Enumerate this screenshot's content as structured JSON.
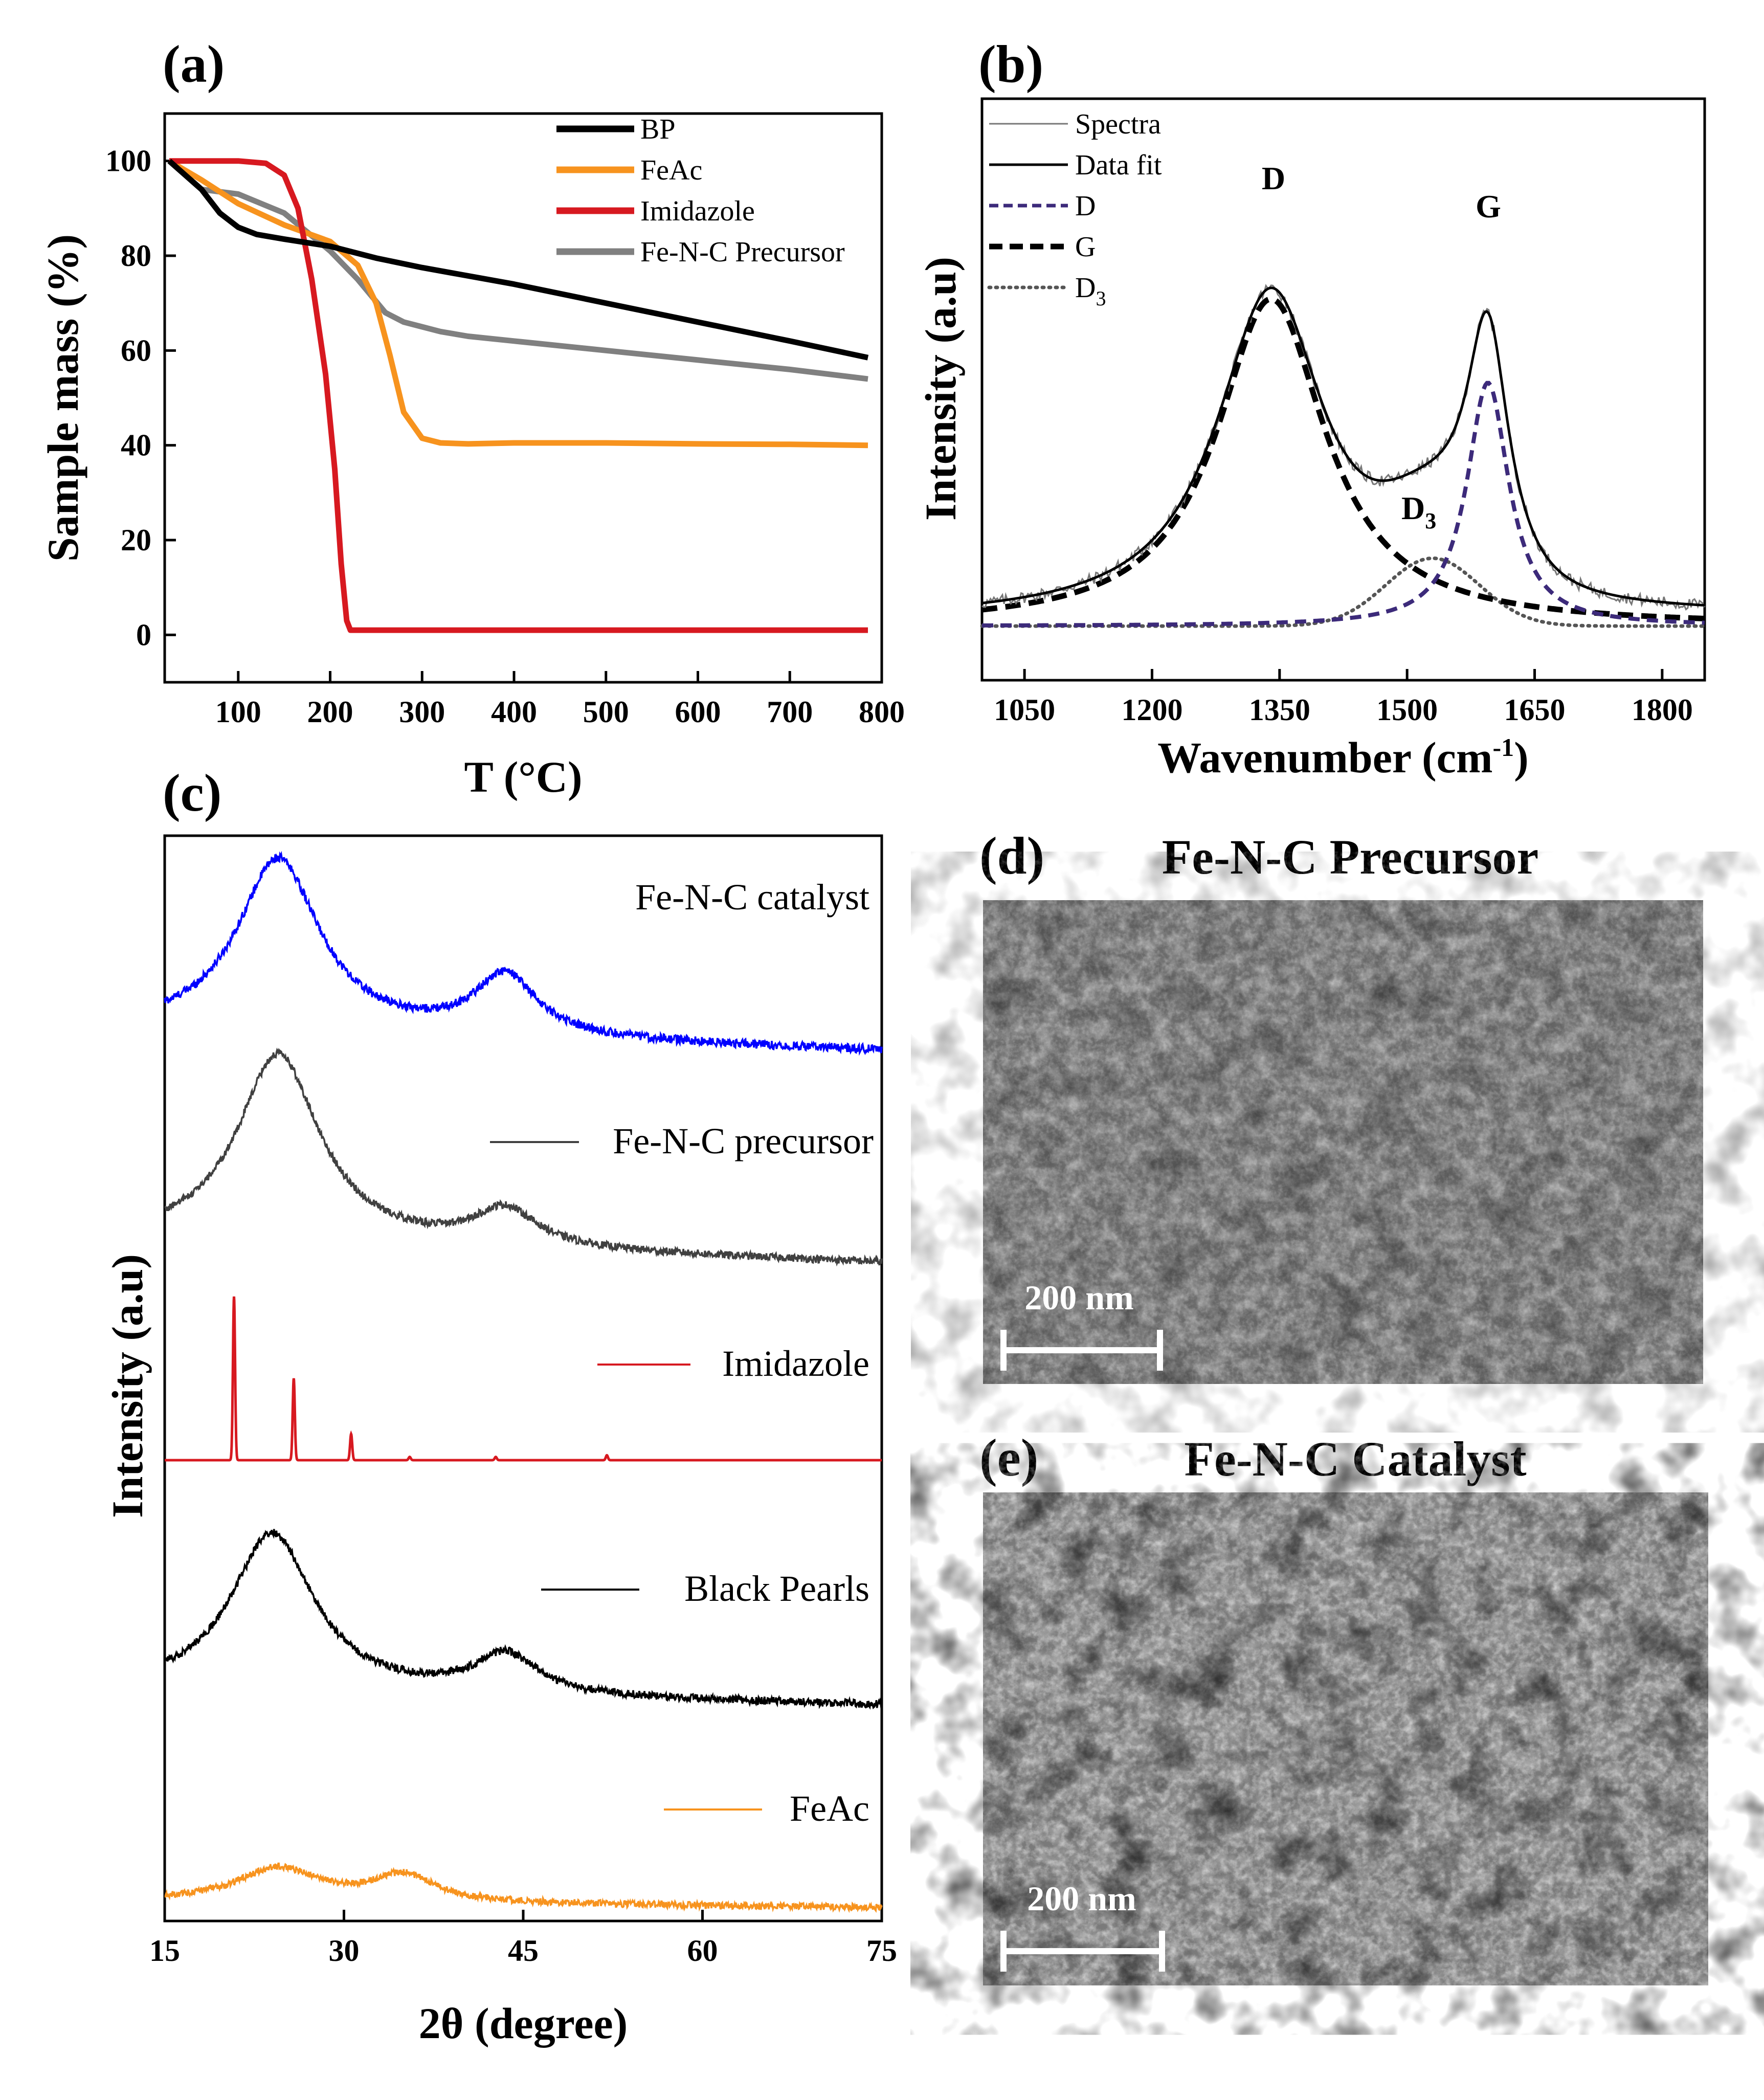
{
  "panels": {
    "a": {
      "label": "(a)",
      "chart_data": {
        "type": "line",
        "xlabel": "T (°C)",
        "ylabel": "Sample mass (%)",
        "xlim": [
          20,
          800
        ],
        "ylim": [
          -10,
          110
        ],
        "xticks": [
          100,
          200,
          300,
          400,
          500,
          600,
          700,
          800
        ],
        "yticks": [
          0,
          20,
          40,
          60,
          80,
          100
        ],
        "series": [
          {
            "name": "BP",
            "color": "#000000",
            "x": [
              25,
              60,
              80,
              100,
              120,
              150,
              200,
              250,
              300,
              400,
              500,
              600,
              700,
              785
            ],
            "y": [
              100,
              94,
              89,
              86,
              84.5,
              83.5,
              82,
              79.5,
              77.5,
              74,
              70,
              66,
              62,
              58.5
            ]
          },
          {
            "name": "FeAc",
            "color": "#f7931e",
            "x": [
              25,
              60,
              100,
              150,
              200,
              230,
              250,
              265,
              280,
              300,
              320,
              350,
              400,
              500,
              600,
              700,
              785
            ],
            "y": [
              100,
              96,
              91,
              86.5,
              83,
              78,
              70,
              59,
              47,
              41.5,
              40.5,
              40.3,
              40.5,
              40.5,
              40.3,
              40.2,
              40
            ]
          },
          {
            "name": "Imidazole",
            "color": "#d71920",
            "x": [
              25,
              100,
              130,
              150,
              165,
              180,
              195,
              205,
              212,
              218,
              222,
              300,
              400,
              500,
              600,
              700,
              785
            ],
            "y": [
              100,
              100,
              99.5,
              97,
              90,
              75,
              55,
              35,
              15,
              3,
              1,
              1,
              1,
              1,
              1,
              1,
              1
            ]
          },
          {
            "name": "Fe-N-C Precursor",
            "color": "#808080",
            "x": [
              25,
              60,
              100,
              150,
              200,
              230,
              260,
              280,
              300,
              320,
              350,
              400,
              500,
              600,
              700,
              785
            ],
            "y": [
              100,
              94,
              93,
              89,
              81,
              75,
              68,
              66,
              65,
              64,
              63,
              62,
              60,
              58,
              56,
              54
            ]
          }
        ]
      }
    },
    "b": {
      "label": "(b)",
      "chart_data": {
        "type": "line",
        "xlabel": "Wavenumber (cm",
        "xlabel_sup": "-1",
        "xlabel_close": ")",
        "ylabel": "Intensity (a.u)",
        "xlim": [
          1000,
          1850
        ],
        "xticks": [
          1050,
          1200,
          1350,
          1500,
          1650,
          1800
        ],
        "peak_labels": {
          "D": "D",
          "G": "G",
          "D3": "D",
          "D3_sub": "3"
        },
        "legend": [
          {
            "name": "Spectra",
            "style": "thin-solid"
          },
          {
            "name": "Data fit",
            "style": "solid"
          },
          {
            "name": "D",
            "style": "purple-dash"
          },
          {
            "name": "G",
            "style": "bold-dash"
          },
          {
            "name": "D",
            "sub": "3",
            "style": "dotted"
          }
        ],
        "components": [
          {
            "name": "D (fit, band at 1340)",
            "center": 1340,
            "height": 0.82,
            "hwhm": 78
          },
          {
            "name": "G (fit, band at 1595)",
            "center": 1595,
            "height": 0.61,
            "hwhm": 30
          },
          {
            "name": "D3 (fit, band at 1530)",
            "center": 1530,
            "height": 0.17,
            "sigma": 55
          }
        ],
        "baseline": 0.0
      }
    },
    "c": {
      "label": "(c)",
      "chart_data": {
        "type": "line",
        "xlabel": "2θ (degree)",
        "ylabel": "Intensity (a.u)",
        "xlim": [
          15,
          75
        ],
        "xticks": [
          15,
          30,
          45,
          60,
          75
        ],
        "traces": [
          {
            "name": "Fe-N-C catalyst",
            "color": "#0000ff",
            "broad_peaks": [
              [
                24.5,
                1.0
              ],
              [
                43.5,
                0.35
              ]
            ],
            "noise": 0.05
          },
          {
            "name": "Fe-N-C precursor",
            "color": "#404040",
            "broad_peaks": [
              [
                24.5,
                1.0
              ],
              [
                43.5,
                0.2
              ]
            ],
            "noise": 0.04
          },
          {
            "name": "Imidazole",
            "color": "#d71920",
            "sharp_peaks": [
              [
                20.8,
                1.0
              ],
              [
                25.8,
                0.5
              ],
              [
                30.6,
                0.16
              ],
              [
                35.5,
                0.02
              ],
              [
                42.7,
                0.02
              ],
              [
                52.0,
                0.03
              ]
            ],
            "noise": 0.0
          },
          {
            "name": "Black Pearls",
            "color": "#000000",
            "broad_peaks": [
              [
                24.0,
                1.0
              ],
              [
                43.5,
                0.25
              ]
            ],
            "noise": 0.05
          },
          {
            "name": "FeAc",
            "color": "#f7931e",
            "broad_peaks": [
              [
                24.5,
                0.5
              ],
              [
                35.0,
                0.4
              ]
            ],
            "noise": 0.1
          }
        ]
      }
    },
    "d": {
      "label": "(d)",
      "title": "Fe-N-C Precursor",
      "scale_bar": "200 nm"
    },
    "e": {
      "label": "(e)",
      "title": "Fe-N-C Catalyst",
      "scale_bar": "200 nm"
    }
  }
}
